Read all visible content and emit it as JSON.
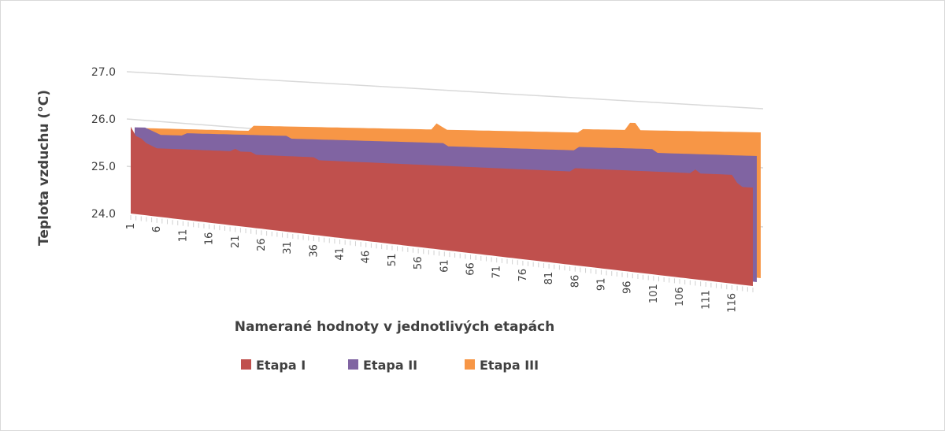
{
  "chart_data": {
    "type": "area",
    "variant": "3d-area",
    "title": "",
    "xlabel": "Namerané hodnoty v jednotlivých etapách",
    "ylabel": "Teplota vzduchu (°C)",
    "ylim": [
      24.0,
      27.0
    ],
    "yticks": [
      "24.0",
      "25.0",
      "26.0",
      "27.0"
    ],
    "xticks": [
      "1",
      "6",
      "11",
      "16",
      "21",
      "26",
      "31",
      "36",
      "41",
      "46",
      "51",
      "56",
      "61",
      "66",
      "71",
      "76",
      "81",
      "86",
      "91",
      "96",
      "101",
      "106",
      "111",
      "116"
    ],
    "x_count": 120,
    "grid": true,
    "legend_position": "bottom",
    "series": [
      {
        "name": "Etapa  I",
        "color": "#c0504d",
        "values": [
          25.9,
          25.7,
          25.65,
          25.55,
          25.5,
          25.45,
          25.45,
          25.45,
          25.45,
          25.45,
          25.45,
          25.45,
          25.45,
          25.45,
          25.45,
          25.45,
          25.45,
          25.45,
          25.45,
          25.45,
          25.5,
          25.45,
          25.45,
          25.45,
          25.4,
          25.4,
          25.4,
          25.4,
          25.4,
          25.4,
          25.4,
          25.4,
          25.4,
          25.4,
          25.4,
          25.4,
          25.35,
          25.35,
          25.35,
          25.35,
          25.35,
          25.35,
          25.35,
          25.35,
          25.35,
          25.35,
          25.35,
          25.35,
          25.35,
          25.35,
          25.35,
          25.35,
          25.35,
          25.35,
          25.35,
          25.35,
          25.35,
          25.35,
          25.35,
          25.35,
          25.35,
          25.35,
          25.35,
          25.35,
          25.35,
          25.35,
          25.35,
          25.35,
          25.35,
          25.35,
          25.35,
          25.35,
          25.35,
          25.35,
          25.35,
          25.35,
          25.35,
          25.35,
          25.35,
          25.35,
          25.35,
          25.35,
          25.35,
          25.35,
          25.35,
          25.4,
          25.4,
          25.4,
          25.4,
          25.4,
          25.4,
          25.4,
          25.4,
          25.4,
          25.4,
          25.4,
          25.4,
          25.4,
          25.4,
          25.4,
          25.4,
          25.4,
          25.4,
          25.4,
          25.4,
          25.4,
          25.4,
          25.4,
          25.45,
          25.4,
          25.4,
          25.4,
          25.4,
          25.4,
          25.4,
          25.4,
          25.3,
          25.25,
          25.25,
          25.25
        ]
      },
      {
        "name": "Etapa  II",
        "color": "#8064a2",
        "values": [
          25.8,
          25.8,
          25.8,
          25.75,
          25.7,
          25.65,
          25.65,
          25.65,
          25.65,
          25.65,
          25.7,
          25.7,
          25.7,
          25.7,
          25.7,
          25.7,
          25.7,
          25.7,
          25.7,
          25.7,
          25.7,
          25.7,
          25.7,
          25.7,
          25.7,
          25.7,
          25.7,
          25.7,
          25.7,
          25.7,
          25.65,
          25.65,
          25.65,
          25.65,
          25.65,
          25.65,
          25.65,
          25.65,
          25.65,
          25.65,
          25.65,
          25.65,
          25.65,
          25.65,
          25.65,
          25.65,
          25.65,
          25.65,
          25.65,
          25.65,
          25.65,
          25.65,
          25.65,
          25.65,
          25.65,
          25.65,
          25.65,
          25.65,
          25.65,
          25.65,
          25.6,
          25.6,
          25.6,
          25.6,
          25.6,
          25.6,
          25.6,
          25.6,
          25.6,
          25.6,
          25.6,
          25.6,
          25.6,
          25.6,
          25.6,
          25.6,
          25.6,
          25.6,
          25.6,
          25.6,
          25.6,
          25.6,
          25.6,
          25.6,
          25.6,
          25.65,
          25.65,
          25.65,
          25.65,
          25.65,
          25.65,
          25.65,
          25.65,
          25.65,
          25.65,
          25.65,
          25.65,
          25.65,
          25.65,
          25.65,
          25.6,
          25.6,
          25.6,
          25.6,
          25.6,
          25.6,
          25.6,
          25.6,
          25.6,
          25.6,
          25.6,
          25.6,
          25.6,
          25.6,
          25.6,
          25.6,
          25.6,
          25.6,
          25.6,
          25.6
        ]
      },
      {
        "name": "Etapa  III",
        "color": "#f79646",
        "values": [
          25.7,
          25.7,
          25.7,
          25.7,
          25.7,
          25.7,
          25.7,
          25.7,
          25.7,
          25.7,
          25.7,
          25.7,
          25.7,
          25.7,
          25.7,
          25.7,
          25.7,
          25.7,
          25.7,
          25.7,
          25.7,
          25.7,
          25.8,
          25.8,
          25.8,
          25.8,
          25.8,
          25.8,
          25.8,
          25.8,
          25.8,
          25.8,
          25.8,
          25.8,
          25.8,
          25.8,
          25.8,
          25.8,
          25.8,
          25.8,
          25.8,
          25.8,
          25.8,
          25.8,
          25.8,
          25.8,
          25.8,
          25.8,
          25.8,
          25.8,
          25.8,
          25.8,
          25.8,
          25.8,
          25.8,
          25.8,
          25.8,
          25.9,
          25.85,
          25.8,
          25.8,
          25.8,
          25.8,
          25.8,
          25.8,
          25.8,
          25.8,
          25.8,
          25.8,
          25.8,
          25.8,
          25.8,
          25.8,
          25.8,
          25.8,
          25.8,
          25.8,
          25.8,
          25.8,
          25.8,
          25.8,
          25.8,
          25.8,
          25.8,
          25.8,
          25.85,
          25.85,
          25.85,
          25.85,
          25.85,
          25.85,
          25.85,
          25.85,
          25.85,
          25.95,
          25.95,
          25.85,
          25.85,
          25.85,
          25.85,
          25.85,
          25.85,
          25.85,
          25.85,
          25.85,
          25.85,
          25.85,
          25.85,
          25.85,
          25.85,
          25.85,
          25.85,
          25.85,
          25.85,
          25.85,
          25.85,
          25.85,
          25.85,
          25.85,
          25.85
        ]
      }
    ]
  }
}
